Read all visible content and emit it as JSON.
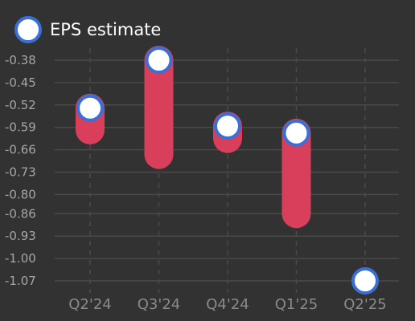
{
  "chart_data": {
    "type": "scatter",
    "categories": [
      "Q2'24",
      "Q3'24",
      "Q4'24",
      "Q1'25",
      "Q2'25"
    ],
    "series": [
      {
        "name": "EPS estimate",
        "values": [
          -0.53,
          -0.38,
          -0.586,
          -0.608,
          -1.07
        ]
      },
      {
        "name": "",
        "values": [
          -0.598,
          -0.675,
          -0.625,
          -0.86,
          null
        ]
      }
    ],
    "y_ticks": [
      "-0.38",
      "-0.45",
      "-0.52",
      "-0.59",
      "-0.66",
      "-0.73",
      "-0.80",
      "-0.86",
      "-0.93",
      "-1.00",
      "-1.07"
    ],
    "ylim": [
      -1.07,
      -0.38
    ],
    "grid": "horizontal solid, vertical dashed",
    "legend_position": "top-left",
    "colors": {
      "background": "#323232",
      "estimate_fill": "#ffffff",
      "estimate_stroke": "#3a6fd8",
      "difference_bar": "#d93f5a",
      "grid": "#4a4a4a",
      "y_tick_text": "#a6a6a6",
      "x_tick_text": "#8a8a8a",
      "legend_text": "#ffffff"
    }
  }
}
